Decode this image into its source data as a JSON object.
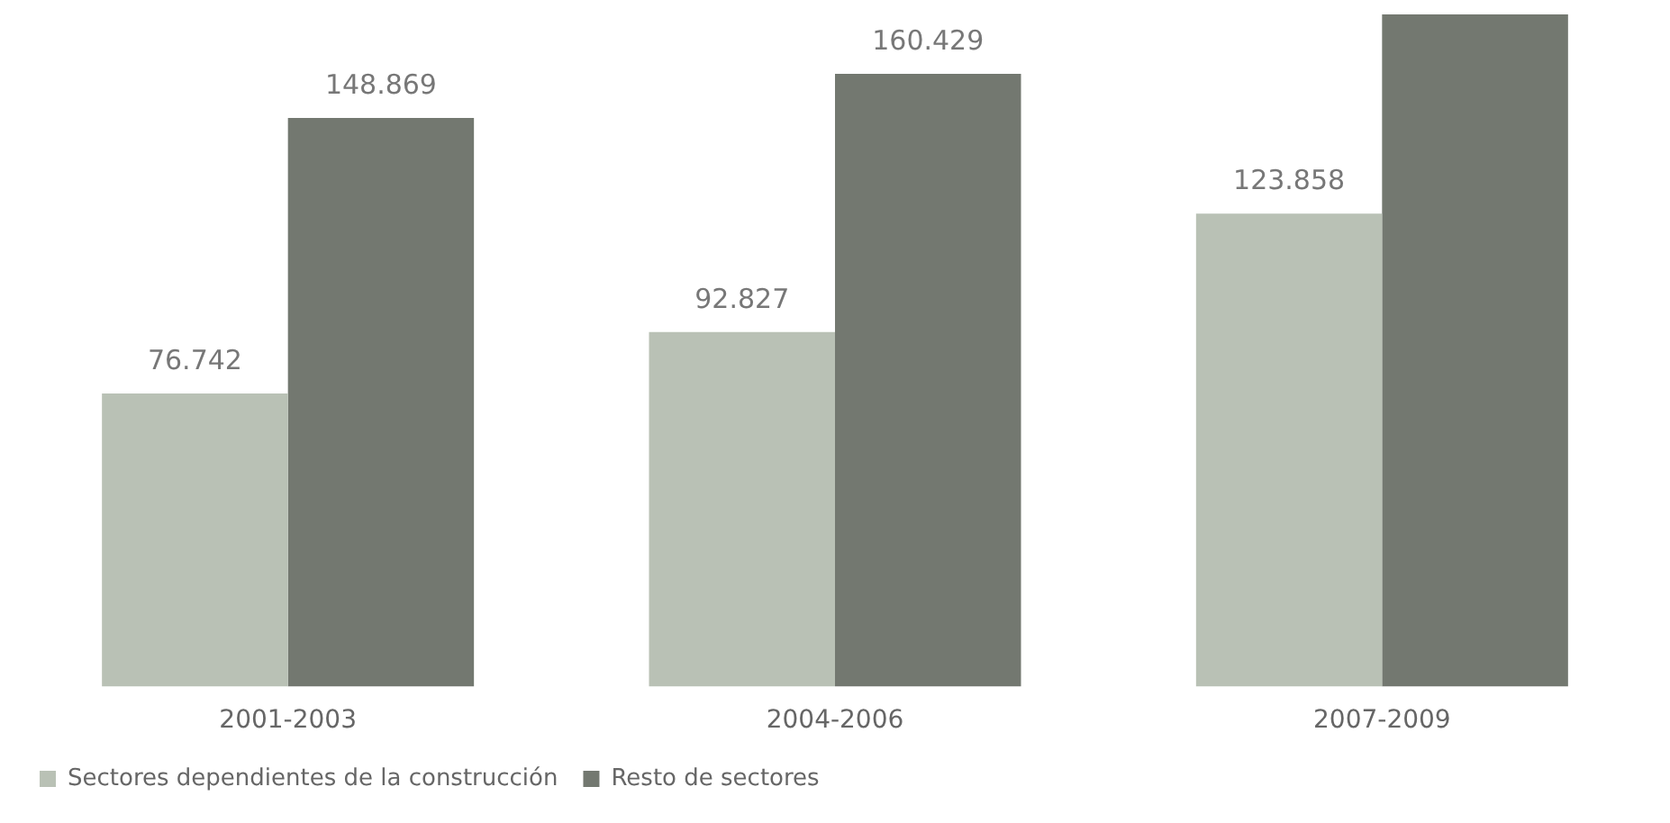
{
  "chart_data": {
    "type": "bar",
    "categories": [
      "2001-2003",
      "2004-2006",
      "2007-2009"
    ],
    "series": [
      {
        "name": "Sectores dependientes de la construcción",
        "color": "#b9c1b5",
        "values": [
          76742,
          92827,
          123858
        ],
        "value_labels": [
          "76.742",
          "92.827",
          "123.858"
        ]
      },
      {
        "name": "Resto de sectores",
        "color": "#737870",
        "values": [
          148869,
          160429,
          176000
        ],
        "value_labels": [
          "148.869",
          "160.429",
          null
        ]
      }
    ],
    "ylim": [
      0,
      176000
    ],
    "tick_labels": "x",
    "grid": false,
    "legend": "bottom left"
  }
}
